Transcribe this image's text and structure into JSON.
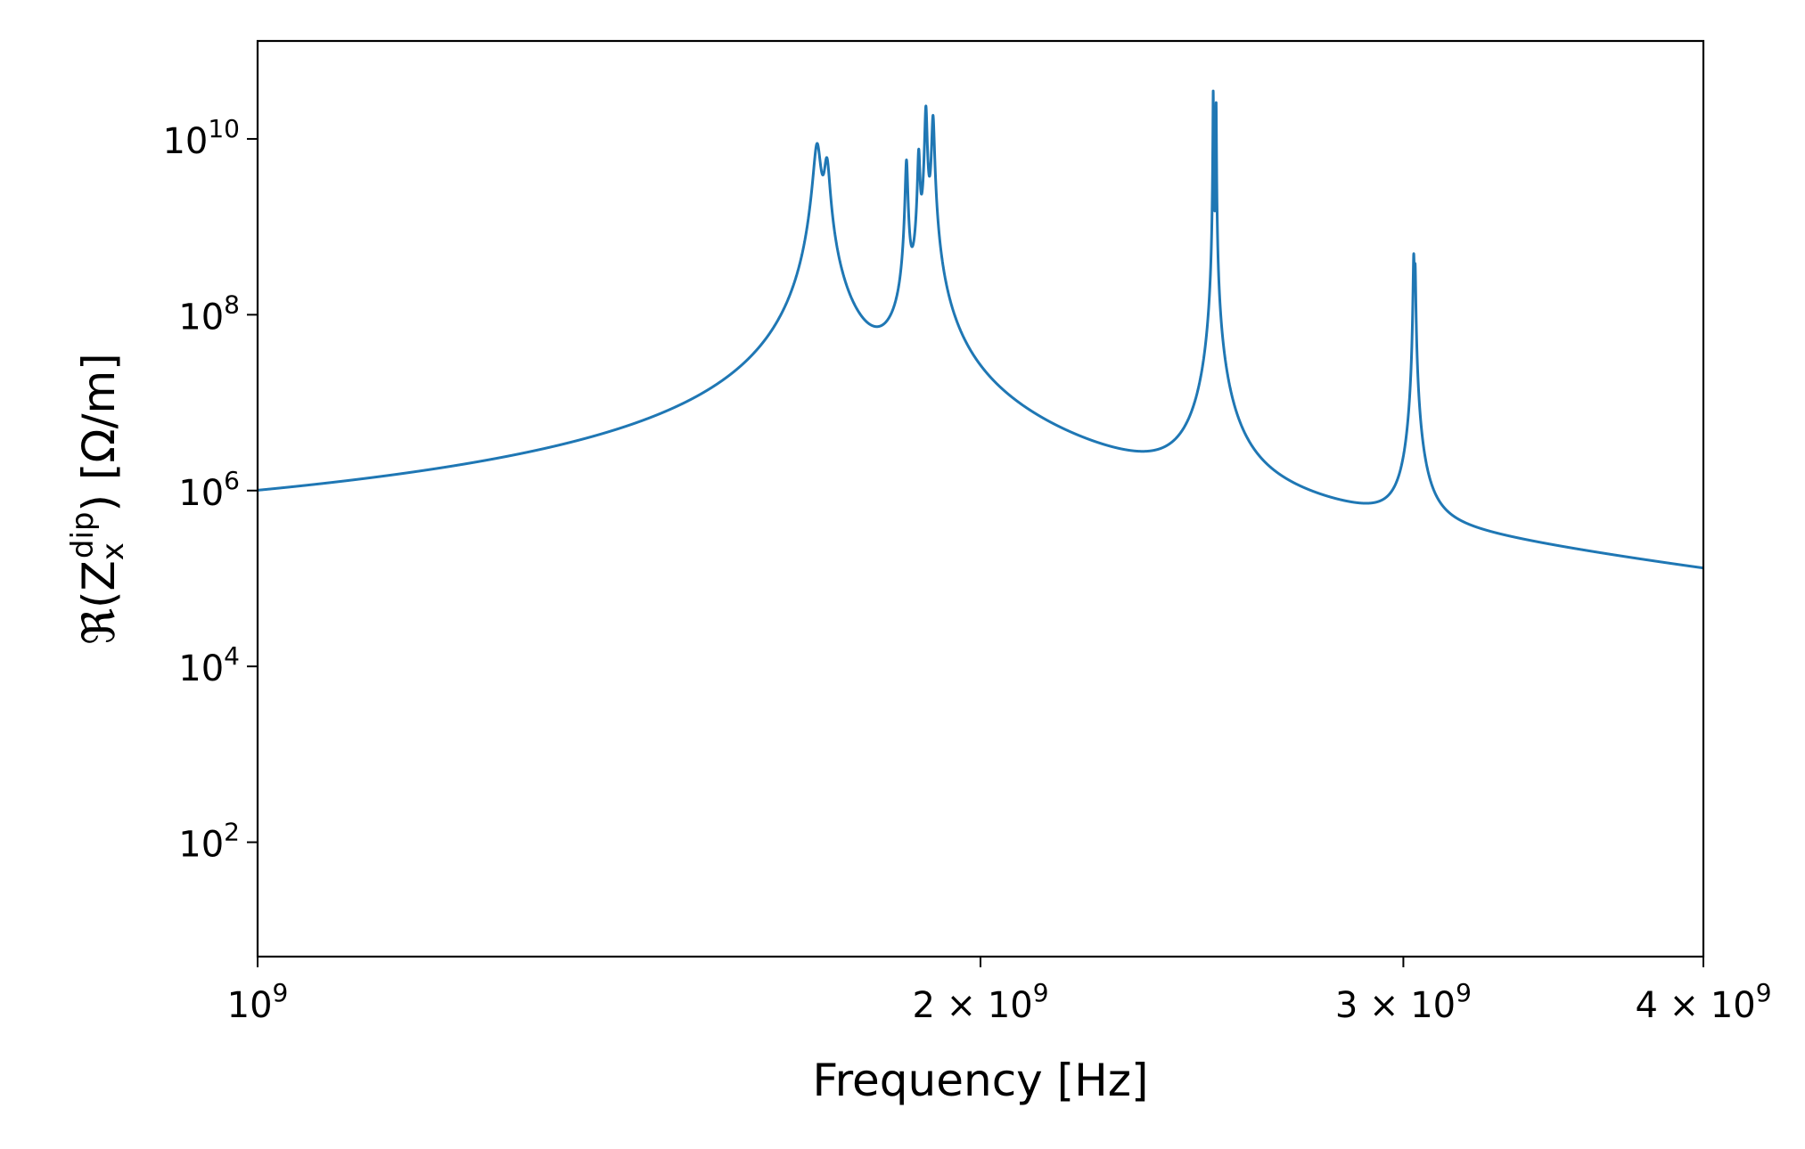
{
  "chart_data": {
    "type": "line",
    "title": "",
    "xlabel": "Frequency [Hz]",
    "ylabel": {
      "prefix": "ℜ(Z",
      "sub": "x",
      "sup": "dip",
      "suffix": ") [Ω/m]"
    },
    "x_scale": "log",
    "y_scale": "log",
    "xlim": [
      1000000000,
      4000000000
    ],
    "ylim": [
      5,
      130000000000
    ],
    "grid": false,
    "line_color": "#1f77b4",
    "x_ticks": [
      {
        "value": 1000000000,
        "base": "10",
        "exp": "9"
      },
      {
        "value": 2000000000,
        "base": "2 × 10",
        "exp": "9"
      },
      {
        "value": 3000000000,
        "base": "3 × 10",
        "exp": "9"
      },
      {
        "value": 4000000000,
        "base": "4 × 10",
        "exp": "9"
      }
    ],
    "y_ticks": [
      {
        "value": 100,
        "base": "10",
        "exp": "2"
      },
      {
        "value": 10000,
        "base": "10",
        "exp": "4"
      },
      {
        "value": 1000000,
        "base": "10",
        "exp": "6"
      },
      {
        "value": 100000000,
        "base": "10",
        "exp": "8"
      },
      {
        "value": 10000000000,
        "base": "10",
        "exp": "10"
      }
    ],
    "resonances": [
      {
        "f0": 1710000000,
        "peak": 8500000000,
        "halfwidth": 5600000
      },
      {
        "f0": 1726000000,
        "peak": 5200000000,
        "halfwidth": 4500000
      },
      {
        "f0": 1863000000,
        "peak": 5600000000,
        "halfwidth": 2000000
      },
      {
        "f0": 1885000000,
        "peak": 7000000000,
        "halfwidth": 1900000
      },
      {
        "f0": 1898000000,
        "peak": 23000000000,
        "halfwidth": 1900000
      },
      {
        "f0": 1911000000,
        "peak": 18000000000,
        "halfwidth": 2200000
      },
      {
        "f0": 2500000000,
        "peak": 35000000000,
        "halfwidth": 560000
      },
      {
        "f0": 2507000000,
        "peak": 26000000000,
        "halfwidth": 560000
      },
      {
        "f0": 3030000000,
        "peak": 450000000,
        "halfwidth": 1600000
      },
      {
        "f0": 3034000000,
        "peak": 320000000,
        "halfwidth": 1600000
      }
    ],
    "background": {
      "amplitude": 1050,
      "f_ref": 1000000000,
      "exponent": -0.62
    }
  }
}
